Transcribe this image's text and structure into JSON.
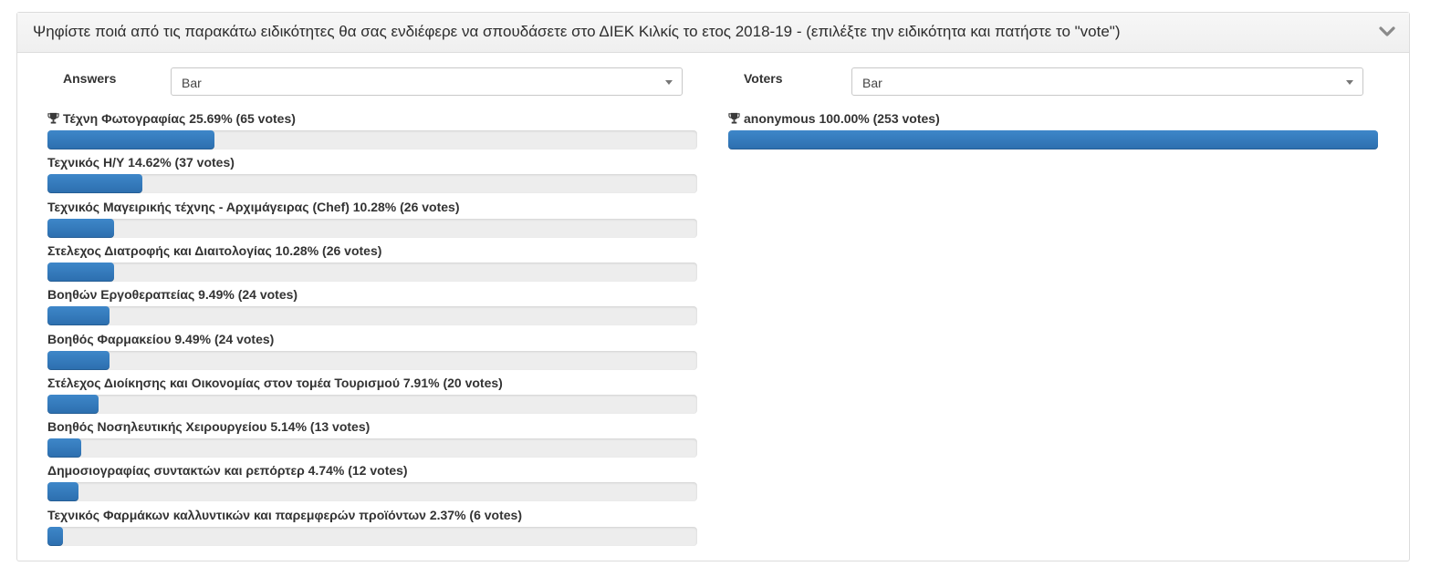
{
  "panel": {
    "title": "Ψηφίστε ποιά από τις παρακάτω ειδικότητες θα σας ενδιέφερε να σπουδάσετε στο ΔΙΕΚ Κιλκίς το ετος 2018-19 - (επιλέξτε την ειδικότητα και πατήστε το \"vote\")",
    "collapse_icon": "chevron-down-icon"
  },
  "answers": {
    "label": "Answers",
    "chart_type": "Bar",
    "items": [
      {
        "text": "Τέχνη Φωτογραφίας 25.69% (65 votes)",
        "percent": 25.69,
        "votes": 65,
        "winner": true
      },
      {
        "text": "Τεχνικός Η/Υ 14.62% (37 votes)",
        "percent": 14.62,
        "votes": 37,
        "winner": false
      },
      {
        "text": "Τεχνικός Μαγειρικής τέχνης - Αρχιμάγειρας (Chef) 10.28% (26 votes)",
        "percent": 10.28,
        "votes": 26,
        "winner": false
      },
      {
        "text": "Στελεχος Διατροφής και Διαιτολογίας 10.28% (26 votes)",
        "percent": 10.28,
        "votes": 26,
        "winner": false
      },
      {
        "text": "Βοηθών Εργοθεραπείας 9.49% (24 votes)",
        "percent": 9.49,
        "votes": 24,
        "winner": false
      },
      {
        "text": "Βοηθός Φαρμακείου 9.49% (24 votes)",
        "percent": 9.49,
        "votes": 24,
        "winner": false
      },
      {
        "text": "Στέλεχος Διοίκησης και Οικονομίας στον τομέα Τουρισμού 7.91% (20 votes)",
        "percent": 7.91,
        "votes": 20,
        "winner": false
      },
      {
        "text": "Βοηθός Νοσηλευτικής Χειρουργείου 5.14% (13 votes)",
        "percent": 5.14,
        "votes": 13,
        "winner": false
      },
      {
        "text": "Δημοσιογραφίας συντακτών και ρεπόρτερ 4.74% (12 votes)",
        "percent": 4.74,
        "votes": 12,
        "winner": false
      },
      {
        "text": "Τεχνικός Φαρμάκων καλλυντικών και παρεμφερών προϊόντων 2.37% (6 votes)",
        "percent": 2.37,
        "votes": 6,
        "winner": false
      }
    ]
  },
  "voters": {
    "label": "Voters",
    "chart_type": "Bar",
    "items": [
      {
        "text": "anonymous  100.00% (253 votes)",
        "percent": 100.0,
        "votes": 253,
        "winner": true
      }
    ]
  },
  "colors": {
    "bar_fill": "#3579bb",
    "bar_track": "#ededed",
    "header_bg": "#f3f3f3"
  },
  "icons": {
    "winner": "trophy-icon",
    "dropdown": "caret-down-icon"
  }
}
